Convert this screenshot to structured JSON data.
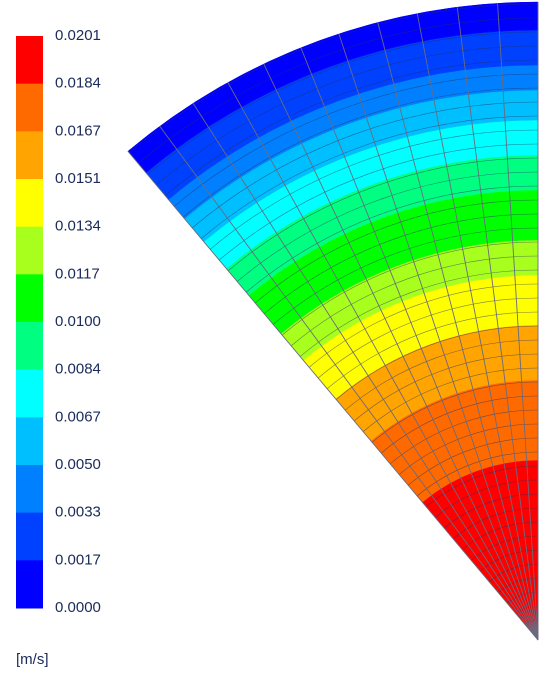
{
  "legend": {
    "labels": [
      "0.0201",
      "0.0184",
      "0.0167",
      "0.0151",
      "0.0134",
      "0.0117",
      "0.0100",
      "0.0084",
      "0.0067",
      "0.0050",
      "0.0033",
      "0.0017",
      "0.0000"
    ],
    "colors": [
      "#ff0000",
      "#ff6a00",
      "#ffa400",
      "#ffff00",
      "#a8ff1e",
      "#00ff00",
      "#00ff80",
      "#00ffff",
      "#00bfff",
      "#0080ff",
      "#0040ff",
      "#0000ff"
    ],
    "unit": "[m/s]"
  }
}
